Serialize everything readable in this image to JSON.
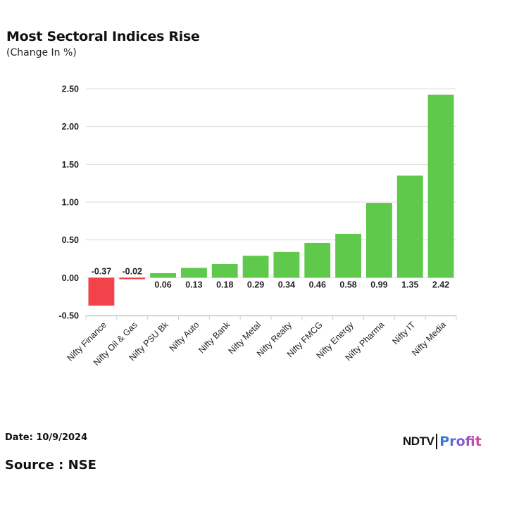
{
  "header": {
    "title": "Most Sectoral Indices Rise",
    "subtitle": "(Change In %)"
  },
  "footer": {
    "date": "Date: 10/9/2024",
    "source": "Source : NSE",
    "logo_left": "NDTV",
    "logo_right": "Profit"
  },
  "colors": {
    "positive": "#5ec94a",
    "negative": "#f2434b",
    "grid": "#dcdcdc"
  },
  "chart_data": {
    "type": "bar",
    "title": "Most Sectoral Indices Rise",
    "subtitle": "(Change In %)",
    "xlabel": "",
    "ylabel": "",
    "ylim": [
      -0.5,
      2.5
    ],
    "yticks": [
      "2.50",
      "2.00",
      "1.50",
      "1.00",
      "0.50",
      "0.00",
      "-0.50"
    ],
    "ytick_values": [
      2.5,
      2.0,
      1.5,
      1.0,
      0.5,
      0.0,
      -0.5
    ],
    "grid": true,
    "legend": "none",
    "categories": [
      "Nifty Finance",
      "Nifty Oil & Gas",
      "Nifty PSU Bk",
      "Nifty Auto",
      "Nifty Bank",
      "Nifty Metal",
      "Nifty Realty",
      "Nifty FMCG",
      "Nifty Energy",
      "Nifty Pharma",
      "Nifty IT",
      "Nifty Media"
    ],
    "values": [
      -0.37,
      -0.02,
      0.06,
      0.13,
      0.18,
      0.29,
      0.34,
      0.46,
      0.58,
      0.99,
      1.35,
      2.42
    ],
    "data_labels": [
      "-0.37",
      "-0.02",
      "0.06",
      "0.13",
      "0.18",
      "0.29",
      "0.34",
      "0.46",
      "0.58",
      "0.99",
      "1.35",
      "2.42"
    ]
  }
}
